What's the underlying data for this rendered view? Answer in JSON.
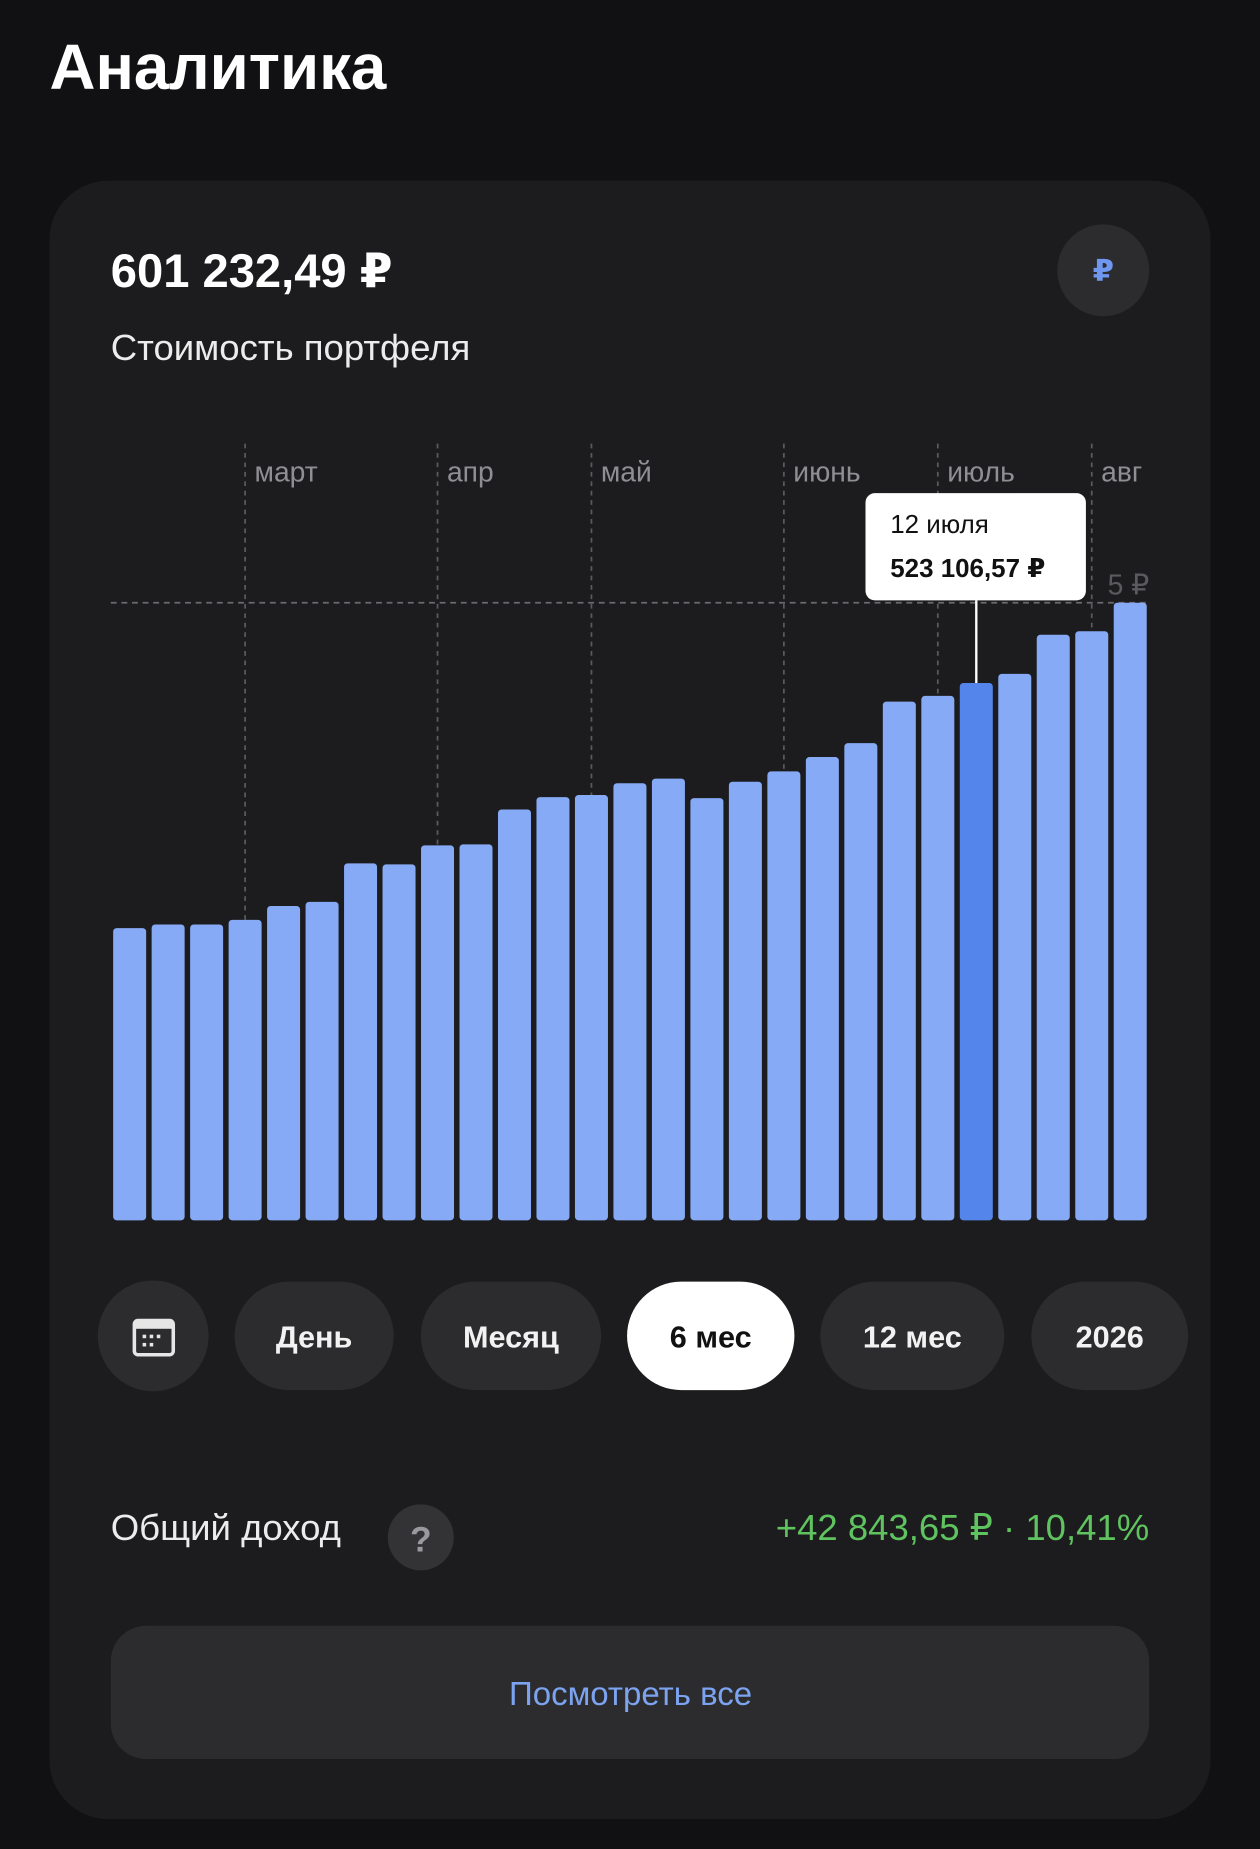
{
  "header": {
    "title": "Аналитика"
  },
  "portfolio": {
    "value": "601 232,49 ₽",
    "label": "Стоимость портфеля",
    "currency_button": "₽"
  },
  "chart_data": {
    "type": "bar",
    "categories": [
      null,
      null,
      null,
      "март",
      null,
      null,
      null,
      null,
      "апр",
      null,
      null,
      null,
      "май",
      null,
      null,
      null,
      null,
      "июнь",
      null,
      null,
      null,
      "июль",
      null,
      null,
      null,
      "авг",
      null
    ],
    "values": [
      284500,
      288000,
      288000,
      292500,
      306000,
      310000,
      347500,
      346500,
      365000,
      366000,
      400000,
      412000,
      414000,
      425500,
      430000,
      411000,
      427000,
      437000,
      451000,
      464500,
      505000,
      510500,
      523106.57,
      532000,
      570000,
      573500,
      601232.49
    ],
    "value_labels": [
      null,
      null,
      null,
      null,
      null,
      null,
      null,
      null,
      null,
      null,
      null,
      null,
      null,
      null,
      null,
      null,
      null,
      null,
      null,
      null,
      null,
      null,
      "523 106,57 ₽",
      null,
      null,
      null,
      null
    ],
    "color": "#86aaf5",
    "highlight_color": "#5485ea",
    "highlight_index": 22,
    "tooltip_date": "12 июля",
    "ylim": [
      0,
      601232.49
    ],
    "reference_label": "5 ₽"
  },
  "periods": [
    "День",
    "Месяц",
    "6 мес",
    "12 мес",
    "2026"
  ],
  "selected_period": 2,
  "income": {
    "label": "Общий доход",
    "help": "?",
    "value": "+42 843,65 ₽ · 10,41%"
  },
  "button": "Посмотреть все"
}
